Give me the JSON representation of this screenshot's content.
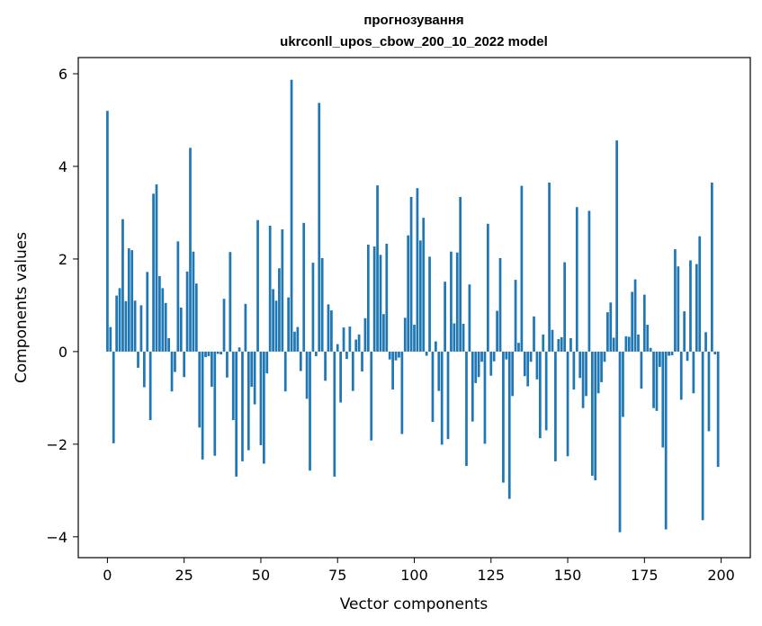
{
  "chart_data": {
    "type": "bar",
    "title_line1": "прогнозування",
    "title_line2": "ukrconll_upos_cbow_200_10_2022 model",
    "xlabel": "Vector components",
    "ylabel": "Components values",
    "xlim": [
      -9.5,
      209.5
    ],
    "ylim": [
      -4.45,
      6.35
    ],
    "xticks": [
      0,
      25,
      50,
      75,
      100,
      125,
      150,
      175,
      200
    ],
    "yticks": [
      -4,
      -2,
      0,
      2,
      4,
      6
    ],
    "ytick_labels": [
      "−4",
      "−2",
      "0",
      "2",
      "4",
      "6"
    ],
    "grid": false,
    "bar_color": "#1f77b4",
    "values": [
      5.2,
      0.53,
      -1.98,
      1.21,
      1.37,
      2.86,
      1.09,
      2.23,
      2.19,
      1.1,
      -0.35,
      1.0,
      -0.77,
      1.72,
      -1.48,
      3.41,
      3.61,
      1.63,
      1.37,
      1.05,
      0.29,
      -0.86,
      -0.44,
      2.38,
      0.95,
      -0.55,
      1.73,
      4.4,
      2.16,
      1.47,
      -1.64,
      -2.33,
      -0.12,
      -0.1,
      -0.76,
      -2.25,
      -0.05,
      -0.06,
      1.14,
      -0.56,
      2.15,
      -1.48,
      -2.7,
      0.09,
      -2.37,
      1.03,
      -2.13,
      -0.76,
      -1.14,
      2.84,
      -2.02,
      -2.42,
      -0.47,
      2.72,
      1.35,
      1.1,
      1.8,
      2.64,
      -0.86,
      1.17,
      5.87,
      0.43,
      0.53,
      -0.42,
      2.78,
      -1.02,
      -2.57,
      1.92,
      -0.1,
      5.37,
      2.02,
      -0.63,
      1.02,
      0.89,
      -2.7,
      0.16,
      -1.1,
      0.52,
      -0.16,
      0.54,
      -0.85,
      0.26,
      0.37,
      -0.43,
      0.72,
      2.31,
      -1.92,
      2.27,
      3.59,
      2.09,
      0.81,
      2.33,
      -0.17,
      -0.82,
      -0.19,
      -0.13,
      -1.78,
      0.73,
      2.51,
      3.34,
      0.58,
      3.53,
      2.4,
      2.89,
      -0.09,
      2.05,
      -1.52,
      0.22,
      -0.85,
      -2.01,
      1.51,
      -1.89,
      2.16,
      0.61,
      2.14,
      3.34,
      0.6,
      -2.47,
      1.45,
      -1.51,
      -0.68,
      -0.55,
      -0.22,
      -1.99,
      2.76,
      -0.52,
      -0.21,
      0.88,
      2.02,
      -2.83,
      -0.17,
      -3.18,
      -0.96,
      1.55,
      0.19,
      3.58,
      -0.53,
      -0.75,
      -0.22,
      0.76,
      -0.6,
      -1.87,
      0.37,
      -1.7,
      3.65,
      0.47,
      -2.37,
      0.27,
      0.31,
      1.93,
      -2.26,
      0.29,
      -0.82,
      3.12,
      -0.57,
      -1.22,
      -0.96,
      3.04,
      -2.68,
      -2.78,
      -0.9,
      -0.66,
      -0.22,
      0.85,
      1.06,
      0.3,
      4.56,
      -3.9,
      -1.41,
      0.33,
      0.32,
      1.29,
      1.56,
      0.37,
      -0.8,
      1.23,
      0.58,
      0.08,
      -1.22,
      -1.28,
      -0.33,
      -2.07,
      -3.84,
      -0.09,
      -0.08,
      2.21,
      1.84,
      -1.04,
      0.87,
      -0.2,
      1.97,
      -0.9,
      1.89,
      2.49,
      -3.64,
      0.42,
      -1.72,
      3.65,
      -0.06,
      -2.49
    ]
  }
}
